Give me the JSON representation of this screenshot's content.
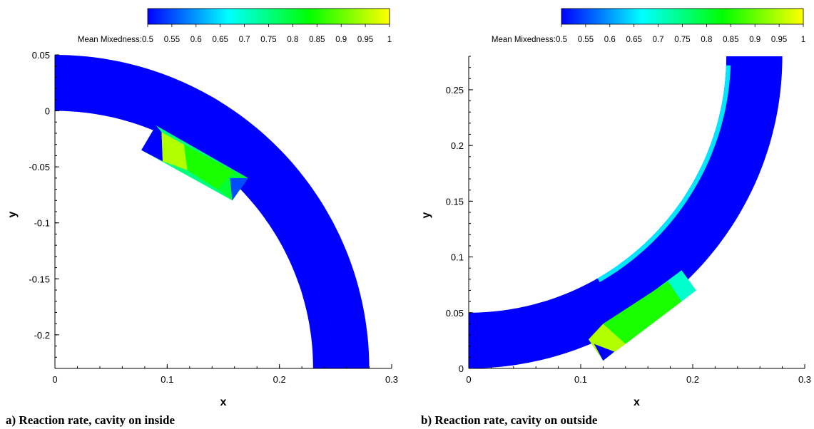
{
  "colormap": [
    "#0000ff",
    "#00ffff",
    "#00ff00",
    "#ffff00"
  ],
  "chart_data": [
    {
      "type": "heatmap",
      "panel": "a",
      "caption": "a) Reaction rate, cavity on inside",
      "colorbar": {
        "label": "Mean Mixedness:",
        "range": [
          0.5,
          1
        ],
        "ticks": [
          "0.5",
          "0.55",
          "0.6",
          "0.65",
          "0.7",
          "0.75",
          "0.8",
          "0.85",
          "0.9",
          "0.95",
          "1"
        ]
      },
      "xlabel": "x",
      "ylabel": "y",
      "xlim": [
        0,
        0.3
      ],
      "ylim": [
        -0.23,
        0.05
      ],
      "xticks": [
        {
          "v": 0,
          "t": "0"
        },
        {
          "v": 0.1,
          "t": "0.1"
        },
        {
          "v": 0.2,
          "t": "0.2"
        },
        {
          "v": 0.3,
          "t": "0.3"
        }
      ],
      "yticks": [
        {
          "v": 0.05,
          "t": "0.05"
        },
        {
          "v": 0,
          "t": "0"
        },
        {
          "v": -0.05,
          "t": "-0.05"
        },
        {
          "v": -0.1,
          "t": "-0.1"
        },
        {
          "v": -0.15,
          "t": "-0.15"
        },
        {
          "v": -0.2,
          "t": "-0.2"
        }
      ],
      "duct": {
        "center": [
          0,
          -0.23
        ],
        "r_inner": 0.23,
        "r_outer": 0.28,
        "theta_start_deg": 90,
        "theta_end_deg": 0,
        "value": 0.5
      },
      "cavity": {
        "side": "inside",
        "corners": [
          [
            0.09,
            -0.013
          ],
          [
            0.172,
            -0.06
          ],
          [
            0.158,
            -0.08
          ],
          [
            0.077,
            -0.035
          ]
        ],
        "regions": [
          {
            "value": 0.5,
            "poly": [
              [
                0.09,
                -0.013
              ],
              [
                0.095,
                -0.019
              ],
              [
                0.096,
                -0.045
              ],
              [
                0.077,
                -0.035
              ]
            ]
          },
          {
            "value": 0.95,
            "poly": [
              [
                0.095,
                -0.019
              ],
              [
                0.115,
                -0.03
              ],
              [
                0.118,
                -0.053
              ],
              [
                0.096,
                -0.045
              ]
            ]
          },
          {
            "value": 0.85,
            "poly": [
              [
                0.115,
                -0.03
              ],
              [
                0.16,
                -0.054
              ],
              [
                0.145,
                -0.07
              ],
              [
                0.118,
                -0.053
              ]
            ]
          },
          {
            "value": 0.8,
            "poly": [
              [
                0.16,
                -0.054
              ],
              [
                0.172,
                -0.06
              ],
              [
                0.158,
                -0.08
              ],
              [
                0.145,
                -0.07
              ]
            ]
          },
          {
            "value": 0.55,
            "poly": [
              [
                0.156,
                -0.06
              ],
              [
                0.172,
                -0.06
              ],
              [
                0.158,
                -0.08
              ]
            ]
          }
        ]
      }
    },
    {
      "type": "heatmap",
      "panel": "b",
      "caption": "b) Reaction rate, cavity on outside",
      "colorbar": {
        "label": "Mean Mixedness:",
        "range": [
          0.5,
          1
        ],
        "ticks": [
          "0.5",
          "0.55",
          "0.6",
          "0.65",
          "0.7",
          "0.75",
          "0.8",
          "0.85",
          "0.9",
          "0.95",
          "1"
        ]
      },
      "xlabel": "x",
      "ylabel": "y",
      "xlim": [
        0,
        0.3
      ],
      "ylim": [
        0,
        0.28
      ],
      "xticks": [
        {
          "v": 0,
          "t": "0"
        },
        {
          "v": 0.1,
          "t": "0.1"
        },
        {
          "v": 0.2,
          "t": "0.2"
        },
        {
          "v": 0.3,
          "t": "0.3"
        }
      ],
      "yticks": [
        {
          "v": 0,
          "t": "0"
        },
        {
          "v": 0.05,
          "t": "0.05"
        },
        {
          "v": 0.1,
          "t": "0.1"
        },
        {
          "v": 0.15,
          "t": "0.15"
        },
        {
          "v": 0.2,
          "t": "0.2"
        },
        {
          "v": 0.25,
          "t": "0.25"
        }
      ],
      "duct": {
        "center": [
          0,
          0.28
        ],
        "r_inner": 0.23,
        "r_outer": 0.28,
        "theta_start_deg": 270,
        "theta_end_deg": 360,
        "value": 0.5
      },
      "cavity": {
        "side": "outside",
        "corners": [
          [
            0.19,
            0.088
          ],
          [
            0.203,
            0.07
          ],
          [
            0.12,
            0.007
          ],
          [
            0.107,
            0.026
          ]
        ],
        "regions": [
          {
            "value": 0.7,
            "poly": [
              [
                0.19,
                0.088
              ],
              [
                0.203,
                0.07
              ],
              [
                0.19,
                0.06
              ],
              [
                0.178,
                0.078
              ]
            ]
          },
          {
            "value": 0.85,
            "poly": [
              [
                0.178,
                0.078
              ],
              [
                0.19,
                0.06
              ],
              [
                0.14,
                0.022
              ],
              [
                0.12,
                0.04
              ]
            ]
          },
          {
            "value": 0.95,
            "poly": [
              [
                0.12,
                0.04
              ],
              [
                0.14,
                0.022
              ],
              [
                0.12,
                0.007
              ],
              [
                0.107,
                0.026
              ]
            ]
          },
          {
            "value": 0.5,
            "poly": [
              [
                0.112,
                0.022
              ],
              [
                0.12,
                0.007
              ],
              [
                0.13,
                0.015
              ]
            ]
          }
        ]
      },
      "duct_wall_layer": {
        "value": 0.65,
        "from_deg": 300,
        "to_deg": 358
      }
    }
  ]
}
